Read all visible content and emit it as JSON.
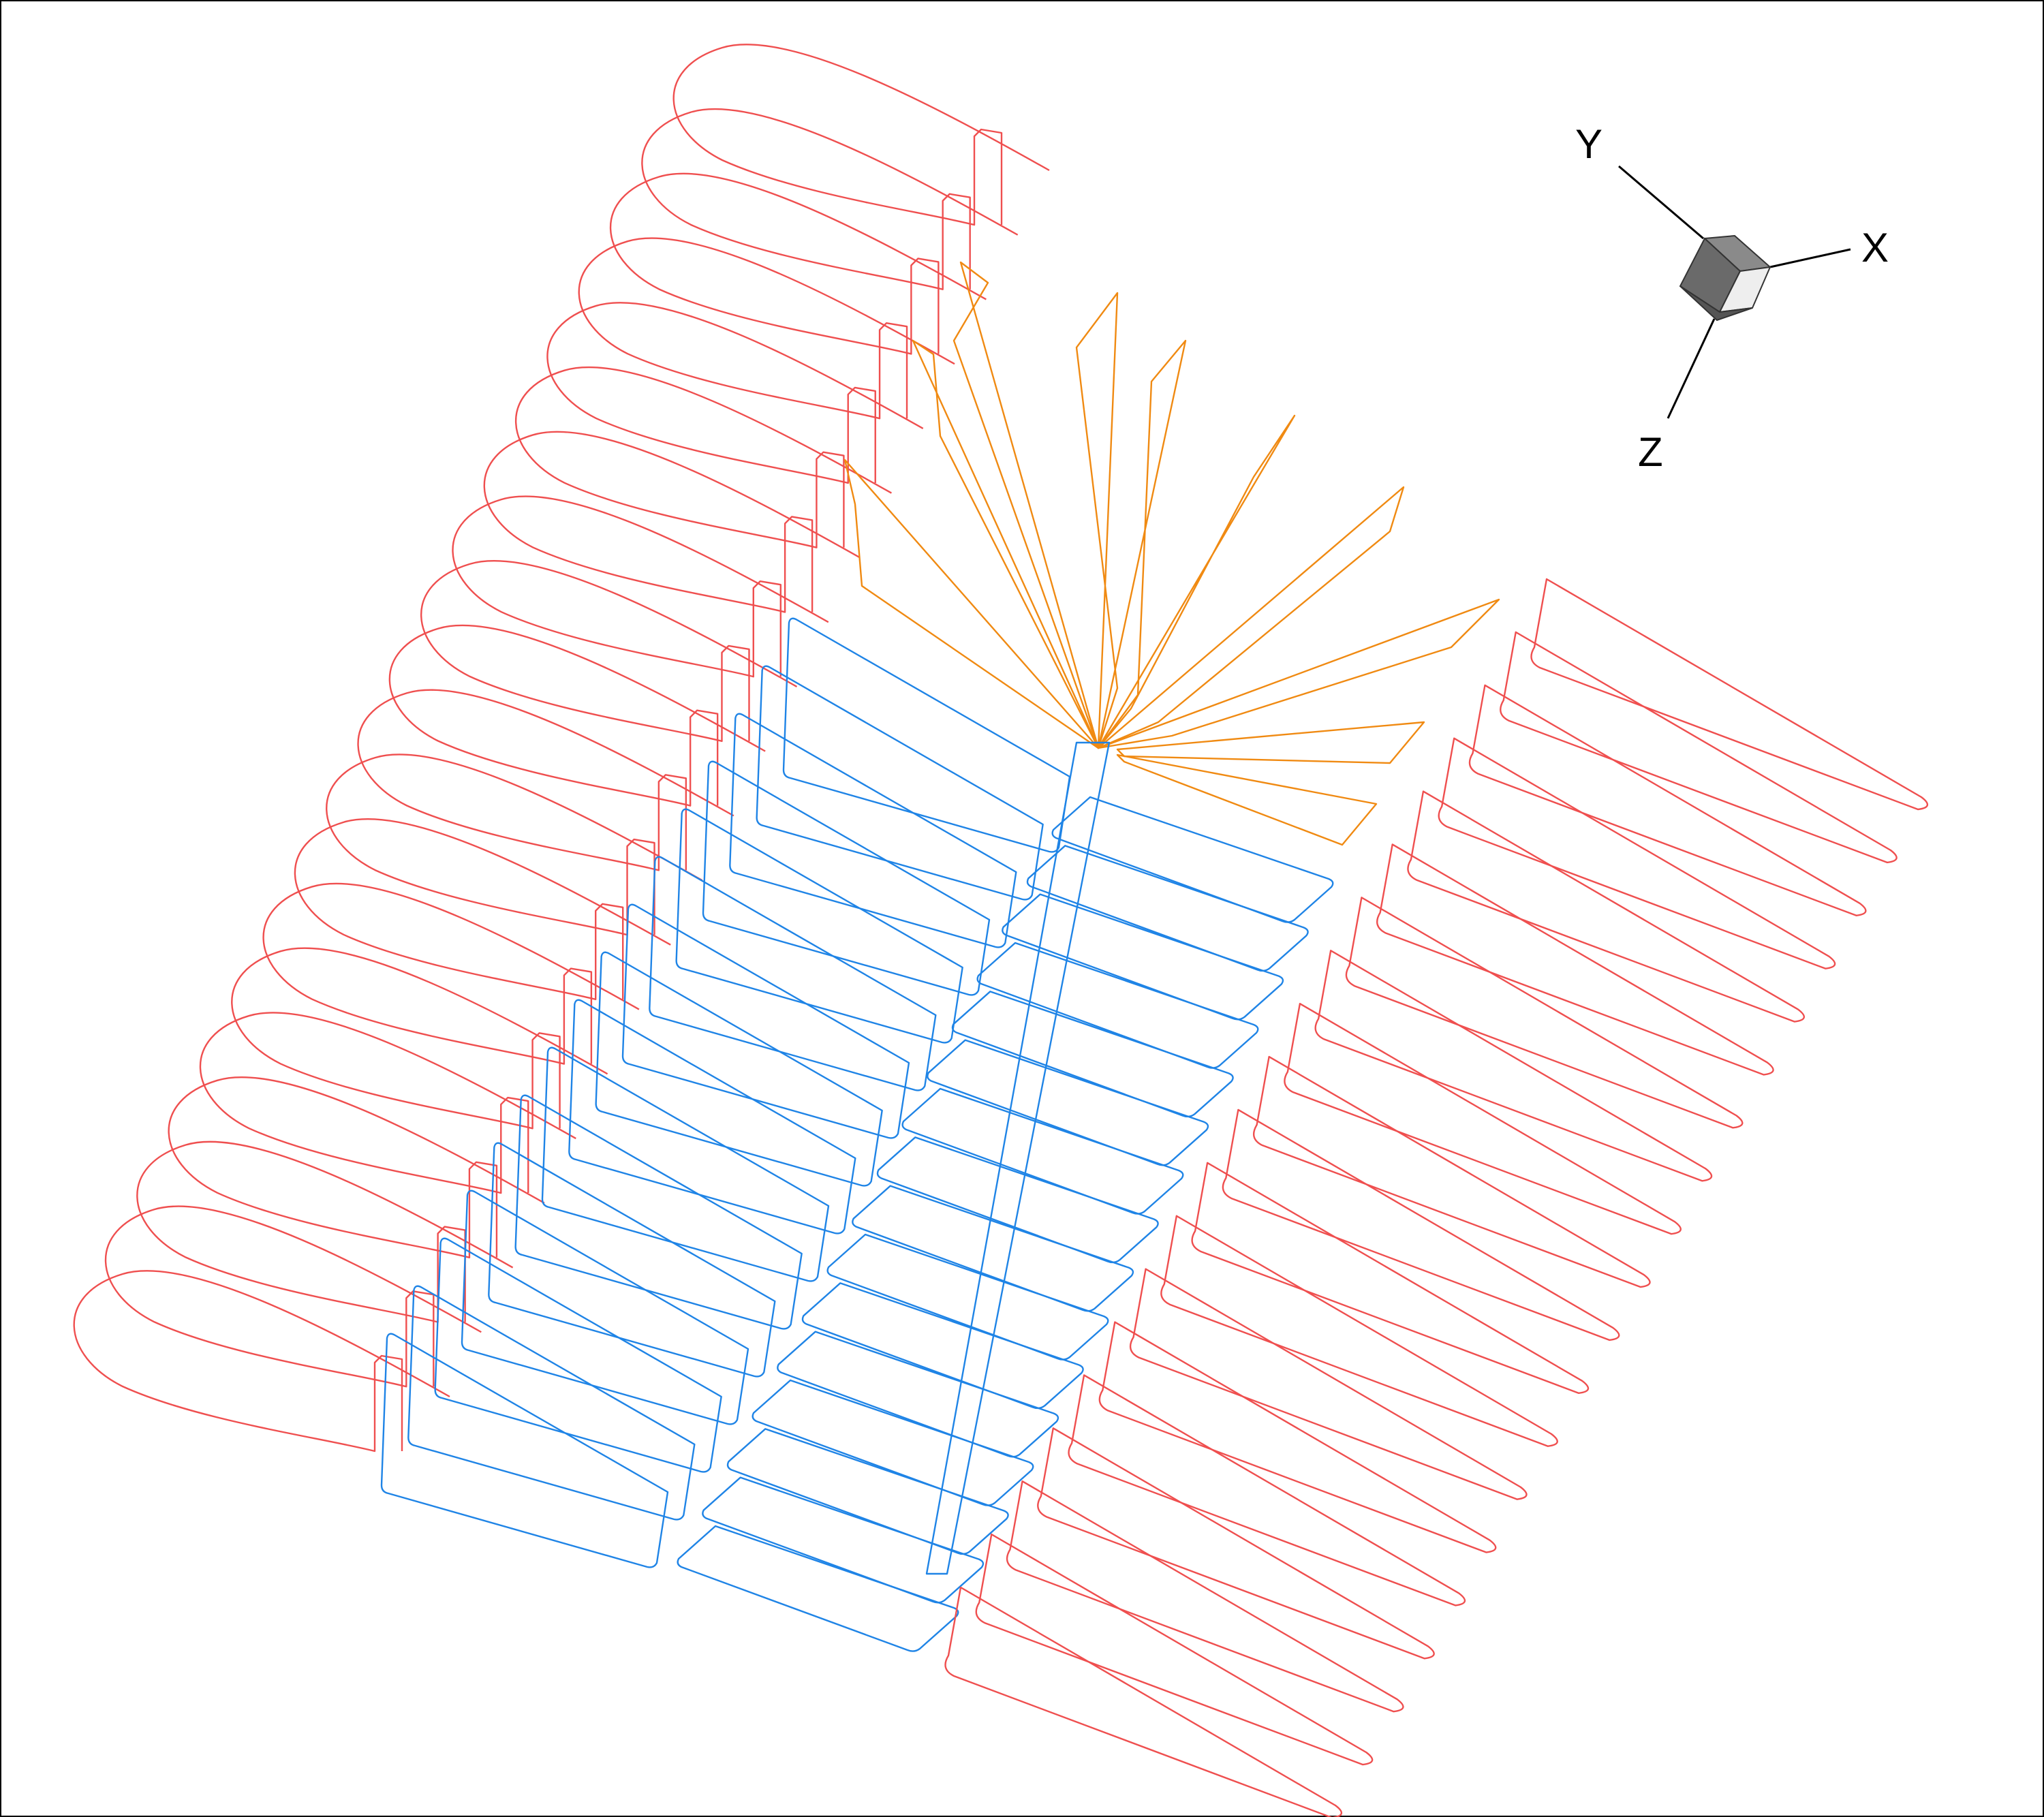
{
  "diagram": {
    "colors": {
      "outer_sections": "#ef4f4f",
      "inner_sections": "#1f84e6",
      "fan_sections": "#f08a12",
      "axis_line": "#000000",
      "background": "#ffffff"
    },
    "section_groups": {
      "left_rounded_sections": 20,
      "inner_rounded_rectangles_left": 16,
      "inner_rounded_rectangles_right": 16,
      "fan_sections": 8,
      "right_tapered_sections": 20
    },
    "orientation_triad": {
      "icon": "3d-cube-icon",
      "axes": {
        "x": "X",
        "y": "Y",
        "z": "Z"
      }
    }
  }
}
